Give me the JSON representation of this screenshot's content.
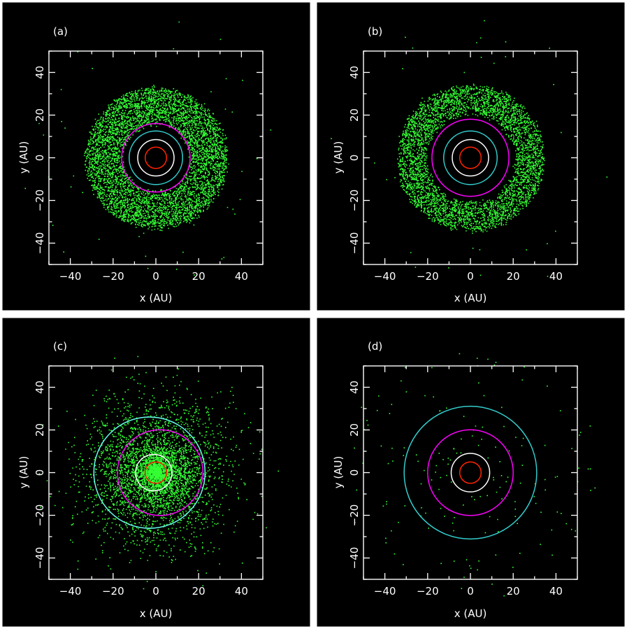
{
  "figure": {
    "background": "#ffffff",
    "panel_background": "#000000",
    "axis_color": "#ffffff",
    "particle_color": "#33ff33"
  },
  "chart_data": [
    {
      "type": "scatter",
      "panel_label": "(a)",
      "xlabel": "x (AU)",
      "ylabel": "y (AU)",
      "xlim": [
        -50,
        50
      ],
      "ylim": [
        -50,
        50
      ],
      "xticks": [
        -40,
        -20,
        0,
        20,
        40
      ],
      "yticks": [
        -40,
        -20,
        0,
        20,
        40
      ],
      "grid": false,
      "particles": {
        "description": "dense annular disk",
        "inner_radius": 16,
        "outer_radius": 33,
        "center": [
          0,
          0
        ],
        "count_approx": 5000,
        "scattered_outliers": 40
      },
      "orbits": [
        {
          "color": "#ff2200",
          "radius": 5.0,
          "center": [
            0,
            0
          ]
        },
        {
          "color": "#ffffff",
          "radius": 8.5,
          "center": [
            0,
            0
          ]
        },
        {
          "color": "#33cccc",
          "radius": 12.5,
          "center": [
            0,
            0
          ]
        },
        {
          "color": "#ff00ff",
          "radius": 16.0,
          "center": [
            0,
            0
          ]
        }
      ]
    },
    {
      "type": "scatter",
      "panel_label": "(b)",
      "xlabel": "x (AU)",
      "ylabel": "y (AU)",
      "xlim": [
        -50,
        50
      ],
      "ylim": [
        -50,
        50
      ],
      "xticks": [
        -40,
        -20,
        0,
        20,
        40
      ],
      "yticks": [
        -40,
        -20,
        0,
        20,
        40
      ],
      "grid": false,
      "particles": {
        "description": "annular disk",
        "inner_radius": 21,
        "outer_radius": 34,
        "center": [
          0,
          0
        ],
        "count_approx": 4000,
        "scattered_outliers": 30
      },
      "orbits": [
        {
          "color": "#ff2200",
          "radius": 5.0,
          "center": [
            0,
            0
          ]
        },
        {
          "color": "#ffffff",
          "radius": 8.5,
          "center": [
            0,
            0
          ]
        },
        {
          "color": "#33cccc",
          "radius": 12.5,
          "center": [
            0,
            0
          ]
        },
        {
          "color": "#ff00ff",
          "radius": 18.0,
          "center": [
            0,
            0
          ]
        }
      ]
    },
    {
      "type": "scatter",
      "panel_label": "(c)",
      "xlabel": "x (AU)",
      "ylabel": "y (AU)",
      "xlim": [
        -50,
        50
      ],
      "ylim": [
        -50,
        50
      ],
      "xticks": [
        -40,
        -20,
        0,
        20,
        40
      ],
      "yticks": [
        -40,
        -20,
        0,
        20,
        40
      ],
      "grid": false,
      "particles": {
        "description": "broad scattered cloud",
        "inner_radius": 0,
        "outer_radius": 55,
        "center": [
          0,
          0
        ],
        "count_approx": 4500,
        "scattered_outliers": 0
      },
      "orbits": [
        {
          "color": "#ff2200",
          "radius": 5.0,
          "center": [
            0,
            0
          ]
        },
        {
          "color": "#ffffff",
          "radius": 8.5,
          "center": [
            -1,
            0
          ]
        },
        {
          "color": "#ff00ff",
          "radius": 20.0,
          "center": [
            2,
            0
          ]
        },
        {
          "color": "#66ffee",
          "radius": 26.0,
          "center": [
            -3,
            0
          ]
        }
      ]
    },
    {
      "type": "scatter",
      "panel_label": "(d)",
      "xlabel": "x (AU)",
      "ylabel": "y (AU)",
      "xlim": [
        -50,
        50
      ],
      "ylim": [
        -50,
        50
      ],
      "xticks": [
        -40,
        -20,
        0,
        20,
        40
      ],
      "yticks": [
        -40,
        -20,
        0,
        20,
        40
      ],
      "grid": false,
      "particles": {
        "description": "sparse scattered particles",
        "inner_radius": 10,
        "outer_radius": 60,
        "center": [
          0,
          0
        ],
        "count_approx": 160,
        "scattered_outliers": 0
      },
      "orbits": [
        {
          "color": "#ff2200",
          "radius": 5.0,
          "center": [
            0,
            0
          ]
        },
        {
          "color": "#ffffff",
          "radius": 9.0,
          "center": [
            0,
            0
          ]
        },
        {
          "color": "#ff00ff",
          "radius": 20.0,
          "center": [
            0,
            0
          ]
        },
        {
          "color": "#33cccc",
          "radius": 31.0,
          "center": [
            0,
            0
          ]
        }
      ]
    }
  ]
}
